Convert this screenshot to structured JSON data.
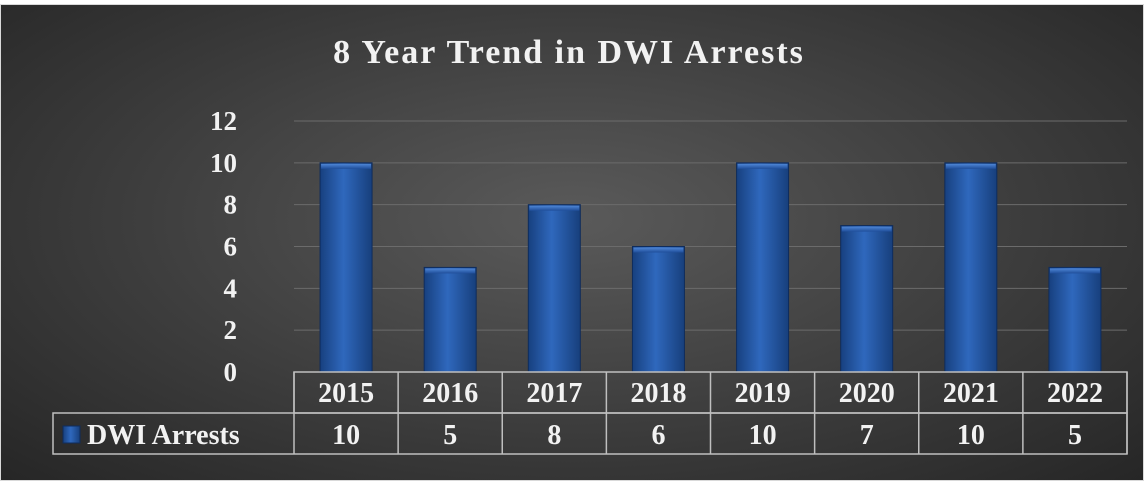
{
  "chart_data": {
    "type": "bar",
    "title": "8 Year Trend in DWI Arrests",
    "categories": [
      "2015",
      "2016",
      "2017",
      "2018",
      "2019",
      "2020",
      "2021",
      "2022"
    ],
    "series": [
      {
        "name": "DWI Arrests",
        "values": [
          10,
          5,
          8,
          6,
          10,
          7,
          10,
          5
        ]
      }
    ],
    "y_ticks": [
      "0",
      "2",
      "4",
      "6",
      "8",
      "10",
      "12"
    ],
    "ylim": [
      0,
      12
    ],
    "grid": true,
    "legend": "data-table-left",
    "colors": {
      "bar": "#1f4e9a",
      "bar_light": "#3a74c9",
      "grid": "#6b6b6b",
      "table_border": "#bfbfbf",
      "text": "#f2f2f2"
    }
  }
}
